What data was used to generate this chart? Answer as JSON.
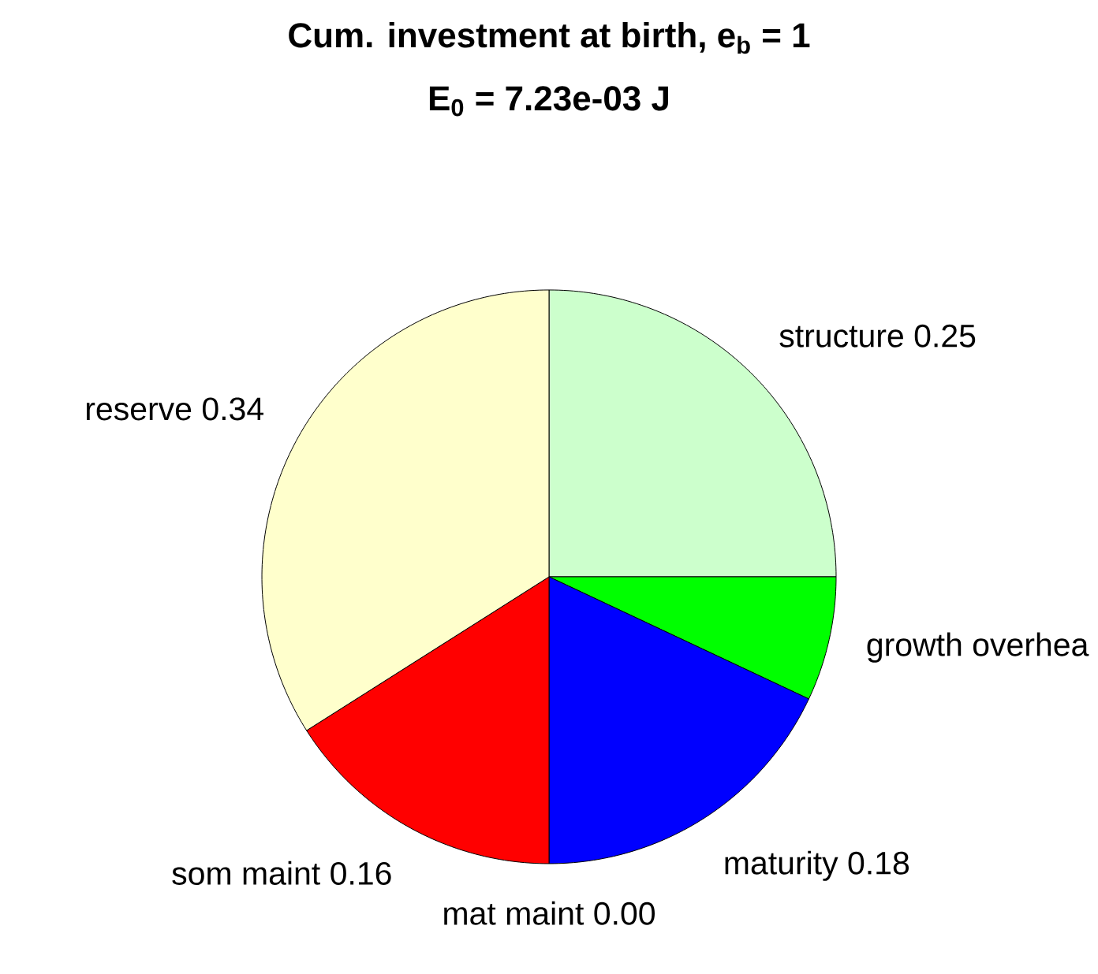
{
  "chart_data": {
    "type": "pie",
    "title": "Cum. investment at birth, e$_{b}$ = 1",
    "subtitle": "E$_{0}$ = 7.23e-03 J",
    "categories": [
      "structure",
      "growth overhea",
      "maturity",
      "mat maint",
      "som maint",
      "reserve"
    ],
    "values": [
      0.25,
      0.07,
      0.18,
      0,
      0.16,
      0.34
    ],
    "value_labels": [
      "0.25",
      null,
      "0.18",
      "0.00",
      "0.16",
      "0.34"
    ],
    "colors": [
      "#ccffcc",
      "#00ff00",
      "#0000ff",
      "#000000",
      "#ff0000",
      "#ffffcc"
    ]
  }
}
